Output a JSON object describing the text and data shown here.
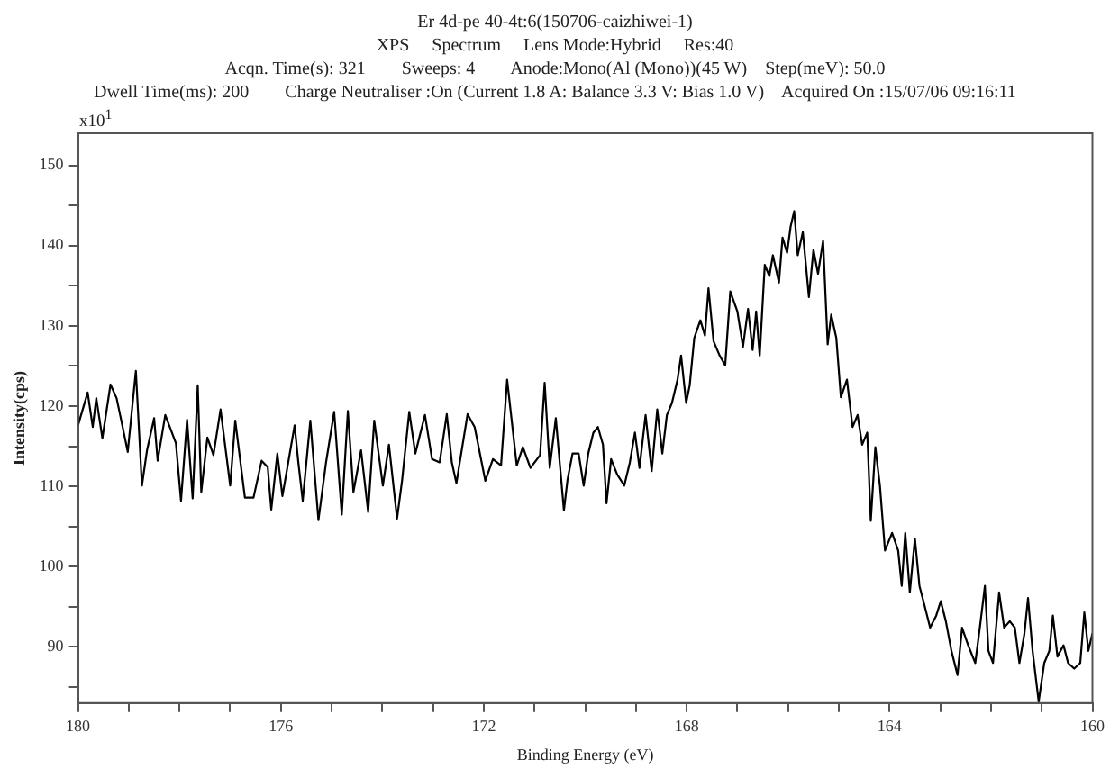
{
  "chart_data": {
    "type": "line",
    "title": "Er 4d-pe 40-4t:6(150706-caizhiwei-1)",
    "subtitle": "XPS     Spectrum     Lens Mode:Hybrid     Res:40",
    "annotations": [
      "Acqn. Time(s): 321        Sweeps: 4        Anode:Mono(Al (Mono))(45 W)    Step(meV): 50.0",
      "Dwell Time(ms): 200        Charge Neutraliser :On (Current 1.8 A: Balance 3.3 V: Bias 1.0 V)    Acquired On :15/07/06 09:16:11",
      "x10$^{1}$"
    ],
    "xlabel": "Binding Energy (eV)",
    "ylabel": "Intensity(cps)",
    "xlim": [
      180,
      160
    ],
    "ylim": [
      83,
      154
    ],
    "xticks": [
      180,
      {
        "value": 179,
        "label": null
      },
      {
        "value": 178,
        "label": null
      },
      {
        "value": 177,
        "label": null
      },
      176,
      {
        "value": 175,
        "label": null
      },
      {
        "value": 174,
        "label": null
      },
      {
        "value": 173,
        "label": null
      },
      172,
      {
        "value": 171,
        "label": null
      },
      {
        "value": 170,
        "label": null
      },
      {
        "value": 169,
        "label": null
      },
      168,
      {
        "value": 167,
        "label": null
      },
      {
        "value": 166,
        "label": null
      },
      {
        "value": 165,
        "label": null
      },
      164,
      {
        "value": 163,
        "label": null
      },
      {
        "value": 162,
        "label": null
      },
      {
        "value": 161,
        "label": null
      },
      160
    ],
    "yticks": [
      {
        "value": 85,
        "label": null
      },
      90,
      {
        "value": 95,
        "label": null
      },
      100,
      {
        "value": 105,
        "label": null
      },
      110,
      {
        "value": 115,
        "label": null
      },
      120,
      {
        "value": 125,
        "label": null
      },
      130,
      {
        "value": 135,
        "label": null
      },
      140,
      {
        "value": 145,
        "label": null
      },
      150
    ],
    "grid": false,
    "legend": false,
    "marker": "none",
    "line_style": "solid",
    "series": [
      {
        "color": "#000000",
        "x": [
          180.0,
          179.81,
          179.71,
          179.64,
          179.52,
          179.36,
          179.24,
          179.14,
          179.02,
          178.86,
          178.74,
          178.64,
          178.5,
          178.43,
          178.28,
          178.07,
          177.97,
          177.85,
          177.74,
          177.64,
          177.57,
          177.45,
          177.33,
          177.19,
          177.0,
          176.9,
          176.71,
          176.54,
          176.38,
          176.26,
          176.19,
          176.07,
          175.97,
          175.73,
          175.66,
          175.57,
          175.42,
          175.26,
          175.11,
          174.95,
          174.8,
          174.68,
          174.57,
          174.42,
          174.28,
          174.16,
          173.99,
          173.87,
          173.71,
          173.61,
          173.47,
          173.35,
          173.16,
          173.02,
          172.87,
          172.73,
          172.63,
          172.54,
          172.32,
          172.18,
          171.97,
          171.82,
          171.66,
          171.54,
          171.35,
          171.23,
          171.08,
          170.89,
          170.8,
          170.7,
          170.58,
          170.42,
          170.35,
          170.25,
          170.13,
          170.03,
          169.94,
          169.84,
          169.75,
          169.65,
          169.58,
          169.49,
          169.37,
          169.23,
          169.12,
          169.02,
          168.93,
          168.81,
          168.69,
          168.58,
          168.48,
          168.39,
          168.29,
          168.18,
          168.11,
          168.01,
          167.94,
          167.85,
          167.73,
          167.64,
          167.57,
          167.47,
          167.35,
          167.24,
          167.14,
          167.0,
          166.89,
          166.79,
          166.7,
          166.63,
          166.56,
          166.46,
          166.37,
          166.3,
          166.18,
          166.11,
          166.02,
          165.95,
          165.88,
          165.81,
          165.71,
          165.59,
          165.5,
          165.41,
          165.31,
          165.22,
          165.15,
          165.05,
          164.96,
          164.84,
          164.73,
          164.63,
          164.54,
          164.44,
          164.37,
          164.28,
          164.19,
          164.09,
          163.95,
          163.83,
          163.76,
          163.69,
          163.6,
          163.5,
          163.41,
          163.32,
          163.2,
          163.08,
          162.99,
          162.89,
          162.78,
          162.66,
          162.57,
          162.45,
          162.31,
          162.22,
          162.12,
          162.05,
          161.96,
          161.84,
          161.74,
          161.63,
          161.53,
          161.44,
          161.34,
          161.27,
          161.18,
          161.06,
          160.95,
          160.85,
          160.78,
          160.69,
          160.57,
          160.48,
          160.36,
          160.24,
          160.16,
          160.08,
          160.0
        ],
        "values": [
          117.6,
          121.7,
          117.4,
          121.0,
          116.0,
          122.7,
          121.0,
          118.0,
          114.3,
          124.4,
          110.1,
          114.5,
          118.5,
          113.2,
          118.9,
          115.4,
          108.2,
          118.3,
          108.5,
          122.6,
          109.3,
          116.1,
          113.9,
          119.6,
          110.1,
          118.2,
          108.6,
          108.6,
          113.2,
          112.4,
          107.1,
          114.1,
          108.8,
          117.6,
          113.2,
          108.2,
          118.2,
          105.8,
          113.0,
          119.3,
          106.5,
          119.4,
          109.3,
          114.5,
          106.8,
          118.2,
          110.1,
          115.2,
          106.0,
          110.8,
          119.3,
          114.1,
          118.9,
          113.4,
          113.0,
          119.0,
          113.0,
          110.4,
          119.0,
          117.4,
          110.7,
          113.4,
          112.6,
          123.3,
          112.6,
          114.9,
          112.3,
          113.9,
          122.9,
          112.3,
          118.5,
          107.0,
          110.8,
          114.1,
          114.1,
          110.1,
          114.1,
          116.7,
          117.4,
          115.2,
          107.9,
          113.4,
          111.5,
          110.1,
          113.0,
          116.7,
          112.3,
          118.9,
          111.9,
          119.6,
          114.1,
          118.9,
          120.4,
          123.3,
          126.3,
          120.4,
          122.6,
          128.5,
          130.7,
          128.8,
          134.7,
          128.1,
          126.3,
          125.1,
          134.3,
          131.8,
          127.4,
          132.1,
          127.0,
          131.8,
          126.3,
          137.6,
          136.2,
          138.8,
          135.4,
          141.0,
          139.1,
          142.4,
          144.3,
          138.8,
          141.7,
          133.6,
          139.5,
          136.5,
          140.6,
          127.7,
          131.4,
          128.5,
          121.1,
          123.3,
          117.4,
          118.9,
          115.2,
          116.7,
          105.7,
          114.9,
          110.1,
          102.0,
          104.2,
          102.0,
          97.6,
          104.2,
          96.8,
          103.5,
          97.6,
          95.4,
          92.4,
          93.9,
          95.7,
          93.2,
          89.5,
          86.5,
          92.4,
          90.2,
          88.0,
          92.4,
          97.6,
          89.5,
          88.0,
          96.8,
          92.4,
          93.2,
          92.4,
          88.0,
          91.7,
          96.1,
          89.5,
          83.2,
          88.0,
          89.5,
          93.9,
          88.8,
          90.2,
          88.0,
          87.3,
          88.0,
          94.3,
          89.5,
          91.7
        ]
      }
    ]
  }
}
